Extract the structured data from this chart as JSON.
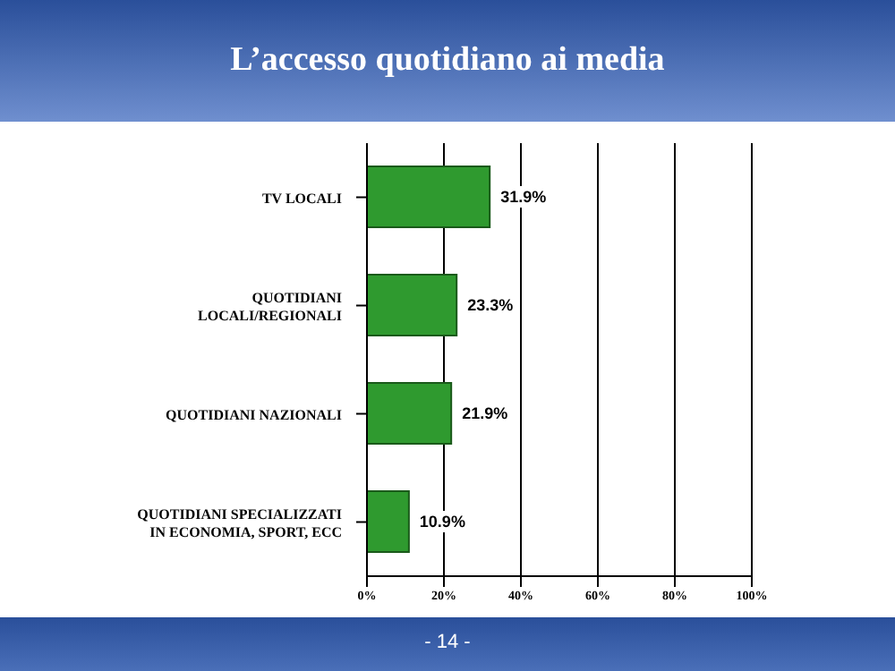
{
  "chart_data": {
    "type": "bar",
    "orientation": "horizontal",
    "title": "L’accesso quotidiano ai media",
    "categories": [
      "TV LOCALI",
      "QUOTIDIANI LOCALI/REGIONALI",
      "QUOTIDIANI NAZIONALI",
      "QUOTIDIANI SPECIALIZZATI IN ECONOMIA, SPORT, ECC"
    ],
    "values": [
      31.9,
      23.3,
      21.9,
      10.9
    ],
    "value_labels": [
      "31.9%",
      "23.3%",
      "21.9%",
      "10.9%"
    ],
    "color": "#2f9a2f",
    "xlim": [
      0,
      100
    ],
    "xticks": [
      {
        "value": 0,
        "label": "0%"
      },
      {
        "value": 20,
        "label": "20%"
      },
      {
        "value": 40,
        "label": "40%"
      },
      {
        "value": 60,
        "label": "60%"
      },
      {
        "value": 80,
        "label": "80%"
      },
      {
        "value": 100,
        "label": "100%"
      }
    ],
    "grid": "x",
    "legend": false,
    "annotations": [
      "- 14 -"
    ]
  }
}
